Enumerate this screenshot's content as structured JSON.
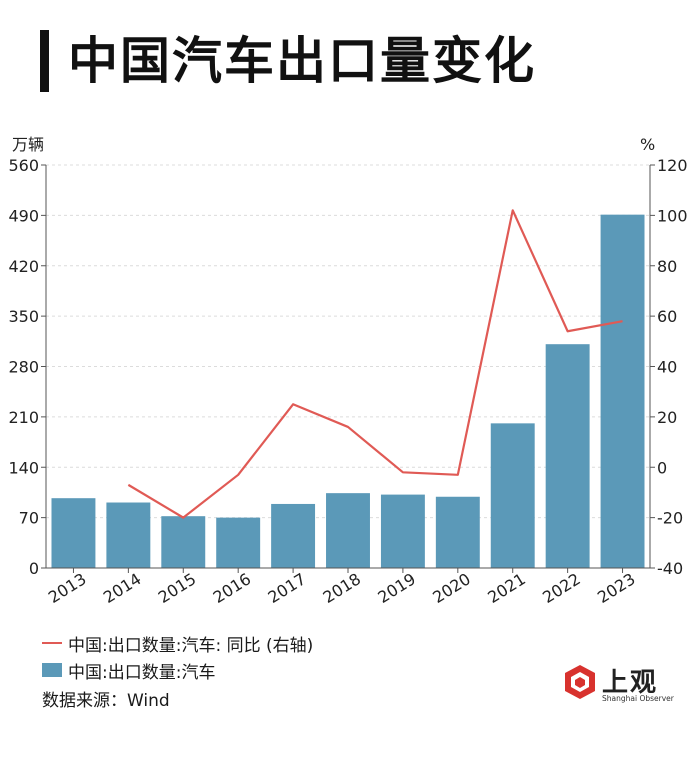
{
  "title": "中国汽车出口量变化",
  "legend": {
    "line_label": "中国:出口数量:汽车: 同比 (右轴)",
    "bar_label": "中国:出口数量:汽车"
  },
  "source": "数据来源：Wind",
  "logo": {
    "name": "上观",
    "sub": "Shanghai Observer"
  },
  "colors": {
    "bar": "#5b99b8",
    "line": "#e05a55"
  },
  "chart_data": {
    "type": "bar+line",
    "categories": [
      "2013",
      "2014",
      "2015",
      "2016",
      "2017",
      "2018",
      "2019",
      "2020",
      "2021",
      "2022",
      "2023"
    ],
    "left_axis": {
      "unit": "万辆",
      "ticks": [
        0,
        70,
        140,
        210,
        280,
        350,
        420,
        490,
        560
      ],
      "ylim": [
        0,
        560
      ]
    },
    "right_axis": {
      "unit": "%",
      "ticks": [
        -40,
        -20,
        0,
        20,
        40,
        60,
        80,
        100,
        120
      ],
      "ylim": [
        -40,
        120
      ]
    },
    "series": [
      {
        "name": "中国:出口数量:汽车",
        "type": "bar",
        "axis": "left",
        "values": [
          97,
          91,
          72,
          70,
          89,
          104,
          102,
          99,
          201,
          311,
          491
        ]
      },
      {
        "name": "中国:出口数量:汽车: 同比 (右轴)",
        "type": "line",
        "axis": "right",
        "values": [
          null,
          -7,
          -20,
          -3,
          25,
          16,
          -2,
          -3,
          102,
          54,
          58
        ]
      }
    ],
    "grid": true
  }
}
